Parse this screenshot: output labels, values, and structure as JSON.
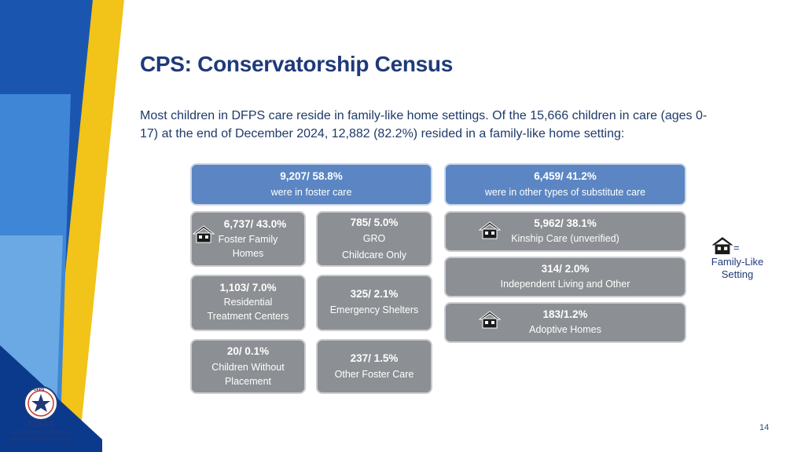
{
  "title": "CPS: Conservatorship Census",
  "intro": "Most children in DFPS care reside in family-like home settings. Of the 15,666 children in care (ages 0-17) at the end of December 2024, 12,882 (82.2%) resided in a family-like home setting:",
  "foster_header": {
    "value": "9,207/ 58.8%",
    "desc": "were in foster care"
  },
  "other_header": {
    "value": "6,459/ 41.2%",
    "desc": "were in other types of substitute care"
  },
  "foster_family": {
    "value": "6,737/ 43.0%",
    "desc1": "Foster Family",
    "desc2": "Homes"
  },
  "gro": {
    "value": "785/ 5.0%",
    "desc1": "GRO",
    "desc2": "Childcare Only"
  },
  "rtc": {
    "value": "1,103/ 7.0%",
    "desc1": "Residential",
    "desc2": "Treatment Centers"
  },
  "emergency": {
    "value": "325/ 2.1%",
    "desc1": "Emergency Shelters"
  },
  "without": {
    "value": "20/ 0.1%",
    "desc1": "Children Without",
    "desc2": "Placement"
  },
  "other_foster": {
    "value": "237/ 1.5%",
    "desc1": "Other Foster Care"
  },
  "kinship": {
    "value": "5,962/ 38.1%",
    "desc1": "Kinship Care (unverified)"
  },
  "independent": {
    "value": "314/ 2.0%",
    "desc1": "Independent Living and Other"
  },
  "adoptive": {
    "value": "183/1.2%",
    "desc1": "Adoptive Homes"
  },
  "legend": {
    "eq": "=",
    "line1": "Family-Like",
    "line2": "Setting",
    "icon": "house-icon"
  },
  "page_number": "14",
  "logo": {
    "badge": "DFPS",
    "line1": "TEXAS",
    "line2": "Department of Family",
    "line3": "and Protective Services"
  },
  "colors": {
    "title": "#1f3a7a",
    "blue_box": "#5b86c3",
    "grey_box": "#8c8f93",
    "yellow": "#f2c318",
    "navy": "#0b3a8c"
  }
}
